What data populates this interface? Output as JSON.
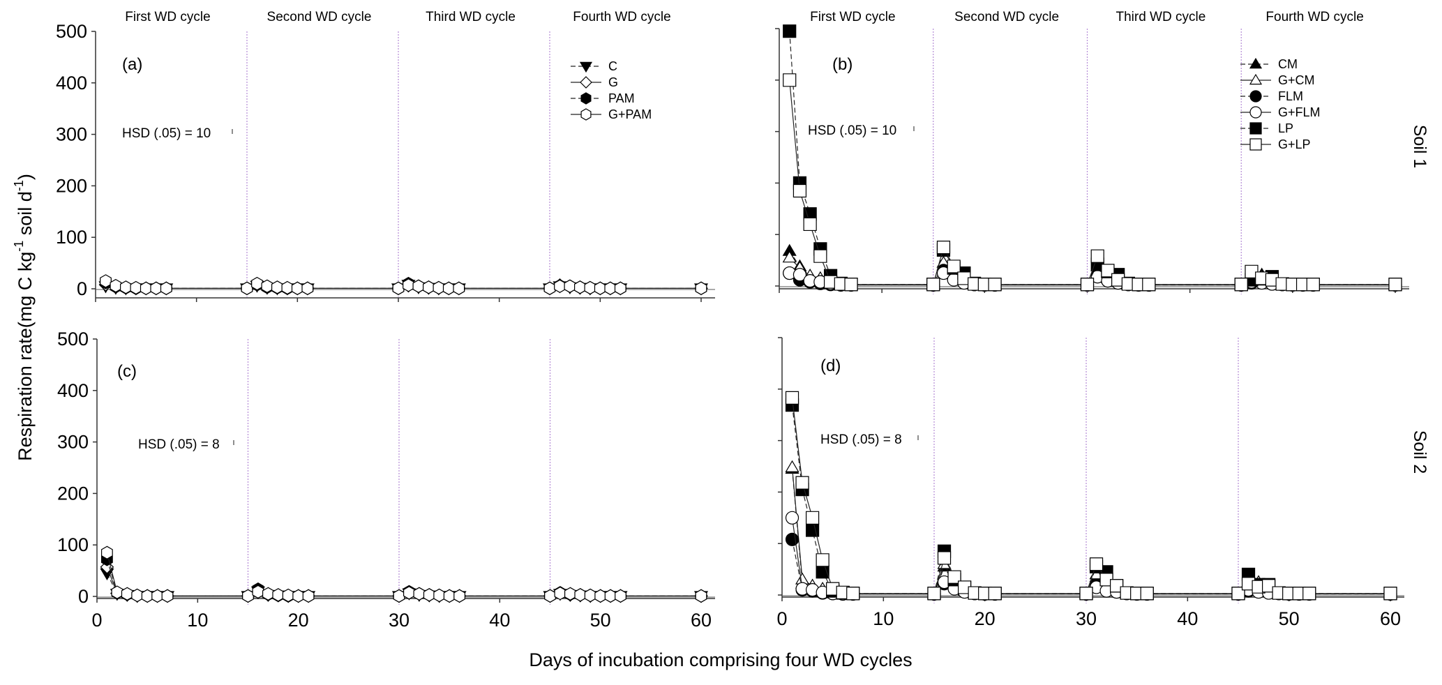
{
  "chart_data": {
    "type": "line",
    "ylabel": "Respiration rate(mg C kg-1 soil d-1)",
    "ylabel_parts": {
      "a": "Respiration rate(mg C kg",
      "sup1": "-1",
      "b": " soil d",
      "sup2": "-1",
      "c": ")"
    },
    "xlabel": "Days of incubation comprising four WD cycles",
    "xlim": [
      0,
      60
    ],
    "ylim": [
      0,
      500
    ],
    "x_ticks": [
      0,
      10,
      20,
      30,
      40,
      50,
      60
    ],
    "y_ticks": [
      0,
      100,
      200,
      300,
      400,
      500
    ],
    "cycle_boundaries": [
      15,
      30,
      45
    ],
    "cycle_labels": [
      "First WD cycle",
      "Second WD cycle",
      "Third WD cycle",
      "Fourth WD cycle"
    ],
    "row_labels": [
      "Soil 1",
      "Soil 2"
    ],
    "x_days": [
      1,
      2,
      3,
      4,
      5,
      6,
      7,
      15,
      16,
      17,
      18,
      19,
      20,
      21,
      30,
      31,
      32,
      33,
      34,
      35,
      36,
      45,
      46,
      47,
      48,
      49,
      50,
      51,
      52,
      60
    ],
    "panels": [
      {
        "id": "a",
        "label": "(a)",
        "soil": "Soil 1",
        "hsd": "HSD (.05) = 10",
        "legend_position": "top-right",
        "series": [
          {
            "name": "C",
            "marker": "triangle-down",
            "filled": true,
            "dashed": true,
            "values": [
              5,
              2,
              1,
              1,
              1,
              1,
              1,
              1,
              6,
              2,
              1,
              1,
              1,
              1,
              1,
              8,
              3,
              2,
              1,
              1,
              1,
              1,
              5,
              3,
              2,
              1,
              1,
              1,
              1,
              1
            ]
          },
          {
            "name": "G",
            "marker": "diamond",
            "filled": false,
            "dashed": false,
            "values": [
              8,
              3,
              2,
              1,
              1,
              1,
              1,
              1,
              7,
              3,
              2,
              1,
              1,
              1,
              1,
              6,
              4,
              2,
              1,
              1,
              1,
              1,
              7,
              4,
              2,
              1,
              1,
              1,
              1,
              1
            ]
          },
          {
            "name": "PAM",
            "marker": "hexagon",
            "filled": true,
            "dashed": true,
            "values": [
              12,
              4,
              2,
              1,
              1,
              1,
              1,
              1,
              8,
              3,
              2,
              1,
              1,
              1,
              1,
              10,
              5,
              3,
              2,
              1,
              1,
              1,
              6,
              5,
              3,
              2,
              1,
              1,
              1,
              1
            ]
          },
          {
            "name": "G+PAM",
            "marker": "hexagon",
            "filled": false,
            "dashed": false,
            "values": [
              15,
              6,
              3,
              2,
              1,
              1,
              1,
              1,
              10,
              5,
              3,
              2,
              1,
              1,
              1,
              7,
              5,
              3,
              2,
              1,
              1,
              1,
              5,
              5,
              3,
              2,
              1,
              1,
              1,
              1
            ]
          }
        ]
      },
      {
        "id": "b",
        "label": "(b)",
        "soil": "Soil 1",
        "hsd": "HSD (.05) = 10",
        "legend_position": "top-right",
        "series": [
          {
            "name": "CM",
            "marker": "triangle-up",
            "filled": true,
            "dashed": true,
            "values": [
              68,
              38,
              18,
              12,
              3,
              2,
              2,
              2,
              40,
              25,
              10,
              3,
              2,
              2,
              2,
              38,
              18,
              12,
              3,
              2,
              2,
              2,
              10,
              22,
              14,
              3,
              2,
              2,
              2,
              2
            ]
          },
          {
            "name": "G+CM",
            "marker": "triangle-up",
            "filled": false,
            "dashed": false,
            "values": [
              55,
              35,
              20,
              15,
              4,
              3,
              2,
              2,
              45,
              22,
              10,
              3,
              2,
              2,
              2,
              30,
              15,
              10,
              3,
              2,
              2,
              2,
              12,
              18,
              12,
              3,
              2,
              2,
              2,
              2
            ]
          },
          {
            "name": "FLM",
            "marker": "circle",
            "filled": true,
            "dashed": true,
            "values": [
              25,
              12,
              8,
              5,
              3,
              2,
              2,
              2,
              30,
              15,
              8,
              3,
              2,
              2,
              2,
              20,
              10,
              6,
              3,
              2,
              2,
              2,
              6,
              8,
              4,
              3,
              2,
              2,
              2,
              2
            ]
          },
          {
            "name": "G+FLM",
            "marker": "circle",
            "filled": false,
            "dashed": false,
            "values": [
              25,
              22,
              10,
              8,
              5,
              3,
              2,
              2,
              25,
              12,
              6,
              3,
              2,
              2,
              2,
              18,
              10,
              6,
              3,
              2,
              2,
              2,
              8,
              6,
              4,
              3,
              2,
              2,
              2,
              2
            ]
          },
          {
            "name": "LP",
            "marker": "square",
            "filled": true,
            "dashed": true,
            "values": [
              495,
              200,
              140,
              72,
              20,
              5,
              3,
              3,
              70,
              35,
              25,
              5,
              3,
              3,
              3,
              42,
              28,
              22,
              5,
              3,
              3,
              3,
              12,
              14,
              18,
              4,
              3,
              3,
              3,
              3
            ]
          },
          {
            "name": "G+LP",
            "marker": "square",
            "filled": false,
            "dashed": false,
            "values": [
              400,
              185,
              120,
              58,
              8,
              4,
              3,
              3,
              75,
              38,
              15,
              4,
              3,
              3,
              3,
              58,
              30,
              12,
              4,
              3,
              3,
              3,
              28,
              15,
              12,
              4,
              3,
              3,
              3,
              3
            ]
          }
        ]
      },
      {
        "id": "c",
        "label": "(c)",
        "soil": "Soil 2",
        "hsd": "HSD (.05) = 8",
        "series": [
          {
            "name": "C",
            "marker": "triangle-down",
            "filled": true,
            "dashed": true,
            "values": [
              45,
              5,
              3,
              1,
              1,
              1,
              1,
              1,
              10,
              3,
              2,
              1,
              1,
              1,
              1,
              6,
              3,
              2,
              1,
              1,
              1,
              1,
              5,
              3,
              2,
              1,
              1,
              1,
              1,
              1
            ]
          },
          {
            "name": "G",
            "marker": "diamond",
            "filled": false,
            "dashed": false,
            "values": [
              57,
              6,
              3,
              1,
              1,
              1,
              1,
              1,
              8,
              3,
              2,
              1,
              1,
              1,
              1,
              8,
              4,
              2,
              1,
              1,
              1,
              1,
              6,
              3,
              2,
              1,
              1,
              1,
              1,
              1
            ]
          },
          {
            "name": "PAM",
            "marker": "hexagon",
            "filled": true,
            "dashed": true,
            "values": [
              72,
              7,
              4,
              2,
              1,
              1,
              1,
              1,
              14,
              4,
              2,
              1,
              1,
              1,
              1,
              9,
              5,
              3,
              2,
              1,
              1,
              1,
              7,
              4,
              3,
              2,
              1,
              1,
              1,
              1
            ]
          },
          {
            "name": "G+PAM",
            "marker": "hexagon",
            "filled": false,
            "dashed": false,
            "values": [
              85,
              8,
              5,
              2,
              1,
              1,
              1,
              1,
              9,
              5,
              3,
              2,
              1,
              1,
              1,
              7,
              5,
              3,
              2,
              1,
              1,
              1,
              6,
              5,
              3,
              2,
              1,
              1,
              1,
              1
            ]
          }
        ]
      },
      {
        "id": "d",
        "label": "(d)",
        "soil": "Soil 2",
        "hsd": "HSD (.05) = 8",
        "series": [
          {
            "name": "CM",
            "marker": "triangle-up",
            "filled": true,
            "dashed": true,
            "values": [
              245,
              22,
              12,
              6,
              3,
              2,
              2,
              2,
              55,
              20,
              8,
              3,
              2,
              2,
              2,
              35,
              15,
              8,
              3,
              2,
              2,
              2,
              18,
              22,
              10,
              3,
              2,
              2,
              2,
              2
            ]
          },
          {
            "name": "G+CM",
            "marker": "triangle-up",
            "filled": false,
            "dashed": false,
            "values": [
              248,
              30,
              18,
              12,
              4,
              3,
              2,
              2,
              60,
              22,
              10,
              3,
              2,
              2,
              2,
              40,
              18,
              10,
              3,
              2,
              2,
              2,
              15,
              25,
              12,
              3,
              2,
              2,
              2,
              2
            ]
          },
          {
            "name": "FLM",
            "marker": "circle",
            "filled": true,
            "dashed": true,
            "values": [
              108,
              10,
              8,
              4,
              3,
              2,
              2,
              2,
              22,
              20,
              8,
              3,
              2,
              2,
              2,
              18,
              12,
              6,
              3,
              2,
              2,
              2,
              8,
              8,
              5,
              3,
              2,
              2,
              2,
              2
            ]
          },
          {
            "name": "G+FLM",
            "marker": "circle",
            "filled": false,
            "dashed": false,
            "values": [
              150,
              12,
              10,
              5,
              3,
              2,
              2,
              2,
              25,
              12,
              6,
              3,
              2,
              2,
              2,
              15,
              8,
              6,
              3,
              2,
              2,
              2,
              10,
              6,
              4,
              3,
              2,
              2,
              2,
              2
            ]
          },
          {
            "name": "LP",
            "marker": "square",
            "filled": true,
            "dashed": true,
            "values": [
              369,
              205,
              126,
              45,
              8,
              4,
              3,
              3,
              85,
              30,
              15,
              4,
              3,
              3,
              3,
              55,
              45,
              18,
              4,
              3,
              3,
              3,
              40,
              20,
              20,
              4,
              3,
              3,
              3,
              3
            ]
          },
          {
            "name": "G+LP",
            "marker": "square",
            "filled": false,
            "dashed": false,
            "values": [
              383,
              218,
              150,
              68,
              12,
              5,
              3,
              3,
              72,
              35,
              15,
              4,
              3,
              3,
              3,
              60,
              30,
              18,
              4,
              3,
              3,
              3,
              22,
              16,
              18,
              4,
              3,
              3,
              3,
              3
            ]
          }
        ]
      }
    ]
  }
}
